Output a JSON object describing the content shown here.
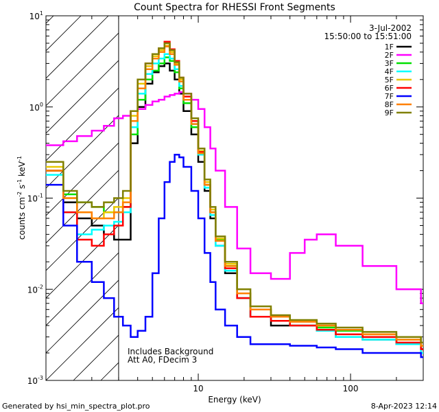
{
  "chart_data": {
    "type": "line",
    "title": "Count Spectra for RHESSI Front Segments",
    "xlabel": "Energy (keV)",
    "ylabel_parts": [
      "counts cm",
      "-2",
      " s",
      "-1",
      " keV",
      "-1"
    ],
    "xscale": "log",
    "yscale": "log",
    "xlim": [
      1,
      300
    ],
    "ylim": [
      0.001,
      10
    ],
    "x_ticks": [
      {
        "value": 10,
        "label": "10"
      },
      {
        "value": 100,
        "label": "100"
      }
    ],
    "y_ticks": [
      {
        "value": 0.001,
        "base": "10",
        "exp": "-3"
      },
      {
        "value": 0.01,
        "base": "10",
        "exp": "-2"
      },
      {
        "value": 0.1,
        "base": "10",
        "exp": "-1"
      },
      {
        "value": 1,
        "base": "10",
        "exp": "0"
      },
      {
        "value": 10,
        "base": "10",
        "exp": "1"
      }
    ],
    "date": "3-Jul-2002",
    "time_range": "15:50:00 to 15:51:00",
    "attenuator_cutoff_kev": 3,
    "annotations": [
      "Includes Background",
      "Att A0, FDecim 3"
    ],
    "footer_left": "Generated by hsi_min_spectra_plot.pro",
    "footer_right": "8-Apr-2023 12:14",
    "series": [
      {
        "name": "1F",
        "color": "#000000",
        "x": [
          1.0,
          1.3,
          1.6,
          2.0,
          2.4,
          2.8,
          3.2,
          3.6,
          4.0,
          4.5,
          5.0,
          5.5,
          6.0,
          6.5,
          7.0,
          7.5,
          8.0,
          9.0,
          10.0,
          11.0,
          12.0,
          13.0,
          15.0,
          18.0,
          22.0,
          30.0,
          40.0,
          60.0,
          80.0,
          120.0,
          200.0,
          290.0
        ],
        "y": [
          0.2,
          0.09,
          0.06,
          0.05,
          0.04,
          0.035,
          0.035,
          0.4,
          1.0,
          1.8,
          2.4,
          2.8,
          3.0,
          2.5,
          2.0,
          1.4,
          0.9,
          0.5,
          0.25,
          0.12,
          0.06,
          0.03,
          0.015,
          0.008,
          0.005,
          0.004,
          0.004,
          0.0035,
          0.003,
          0.0028,
          0.0025,
          0.0022
        ]
      },
      {
        "name": "2F",
        "color": "#ff00ff",
        "x": [
          1.0,
          1.3,
          1.6,
          2.0,
          2.4,
          2.8,
          3.2,
          3.6,
          4.0,
          4.5,
          5.0,
          5.5,
          6.0,
          6.5,
          7.0,
          7.5,
          8.0,
          9.0,
          10.0,
          11.0,
          12.0,
          13.0,
          15.0,
          18.0,
          22.0,
          30.0,
          40.0,
          50.0,
          60.0,
          80.0,
          120.0,
          200.0,
          290.0
        ],
        "y": [
          0.38,
          0.42,
          0.48,
          0.55,
          0.62,
          0.75,
          0.8,
          0.9,
          0.95,
          1.05,
          1.15,
          1.2,
          1.3,
          1.35,
          1.4,
          1.45,
          1.4,
          1.2,
          0.95,
          0.6,
          0.35,
          0.2,
          0.08,
          0.028,
          0.015,
          0.013,
          0.025,
          0.035,
          0.04,
          0.03,
          0.018,
          0.01,
          0.007
        ]
      },
      {
        "name": "3F",
        "color": "#00e000",
        "x": [
          1.0,
          1.3,
          1.6,
          2.0,
          2.4,
          2.8,
          3.2,
          3.6,
          4.0,
          4.5,
          5.0,
          5.5,
          6.0,
          6.5,
          7.0,
          7.5,
          8.0,
          9.0,
          10.0,
          11.0,
          12.0,
          13.0,
          15.0,
          18.0,
          22.0,
          30.0,
          40.0,
          60.0,
          80.0,
          120.0,
          200.0,
          290.0
        ],
        "y": [
          0.2,
          0.11,
          0.09,
          0.08,
          0.07,
          0.07,
          0.08,
          0.5,
          1.2,
          2.0,
          2.5,
          3.0,
          3.5,
          3.2,
          2.4,
          1.6,
          1.1,
          0.6,
          0.3,
          0.14,
          0.07,
          0.035,
          0.018,
          0.009,
          0.006,
          0.005,
          0.004,
          0.0038,
          0.0035,
          0.003,
          0.0028,
          0.0024
        ]
      },
      {
        "name": "4F",
        "color": "#00ffff",
        "x": [
          1.0,
          1.3,
          1.6,
          2.0,
          2.4,
          2.8,
          3.2,
          3.6,
          4.0,
          4.5,
          5.0,
          5.5,
          6.0,
          6.5,
          7.0,
          7.5,
          8.0,
          9.0,
          10.0,
          11.0,
          12.0,
          13.0,
          15.0,
          18.0,
          22.0,
          30.0,
          40.0,
          60.0,
          80.0,
          120.0,
          200.0,
          290.0
        ],
        "y": [
          0.18,
          0.07,
          0.04,
          0.045,
          0.05,
          0.055,
          0.07,
          0.6,
          1.4,
          2.3,
          3.0,
          3.4,
          3.8,
          3.4,
          2.6,
          1.7,
          1.2,
          0.65,
          0.3,
          0.13,
          0.065,
          0.03,
          0.016,
          0.008,
          0.005,
          0.0045,
          0.004,
          0.0035,
          0.003,
          0.0028,
          0.0025,
          0.002
        ]
      },
      {
        "name": "5F",
        "color": "#e8c800",
        "x": [
          1.0,
          1.3,
          1.6,
          2.0,
          2.4,
          2.8,
          3.2,
          3.6,
          4.0,
          4.5,
          5.0,
          5.5,
          6.0,
          6.5,
          7.0,
          7.5,
          8.0,
          9.0,
          10.0,
          11.0,
          12.0,
          13.0,
          15.0,
          18.0,
          22.0,
          30.0,
          40.0,
          60.0,
          80.0,
          120.0,
          200.0,
          290.0
        ],
        "y": [
          0.22,
          0.1,
          0.07,
          0.06,
          0.07,
          0.08,
          0.1,
          0.8,
          1.8,
          2.8,
          3.6,
          4.2,
          4.7,
          4.0,
          3.0,
          2.0,
          1.3,
          0.7,
          0.33,
          0.15,
          0.075,
          0.036,
          0.019,
          0.009,
          0.006,
          0.005,
          0.0045,
          0.004,
          0.0036,
          0.0032,
          0.0028,
          0.0024
        ]
      },
      {
        "name": "6F",
        "color": "#ff0000",
        "x": [
          1.0,
          1.3,
          1.6,
          2.0,
          2.4,
          2.8,
          3.2,
          3.6,
          4.0,
          4.5,
          5.0,
          5.5,
          6.0,
          6.5,
          7.0,
          7.5,
          8.0,
          9.0,
          10.0,
          11.0,
          12.0,
          13.0,
          15.0,
          18.0,
          22.0,
          30.0,
          40.0,
          60.0,
          80.0,
          120.0,
          200.0,
          290.0
        ],
        "y": [
          0.2,
          0.07,
          0.035,
          0.03,
          0.04,
          0.05,
          0.08,
          0.9,
          2.0,
          3.0,
          3.8,
          4.4,
          5.2,
          4.3,
          3.2,
          2.1,
          1.3,
          0.7,
          0.32,
          0.14,
          0.07,
          0.034,
          0.017,
          0.008,
          0.005,
          0.0045,
          0.004,
          0.0036,
          0.0032,
          0.003,
          0.0026,
          0.0022
        ]
      },
      {
        "name": "7F",
        "color": "#0000ff",
        "x": [
          1.0,
          1.3,
          1.6,
          2.0,
          2.4,
          2.8,
          3.2,
          3.6,
          4.0,
          4.5,
          5.0,
          5.5,
          6.0,
          6.5,
          7.0,
          7.5,
          8.0,
          9.0,
          10.0,
          11.0,
          12.0,
          13.0,
          15.0,
          18.0,
          22.0,
          30.0,
          40.0,
          60.0,
          80.0,
          120.0,
          200.0,
          290.0
        ],
        "y": [
          0.14,
          0.05,
          0.02,
          0.012,
          0.008,
          0.005,
          0.004,
          0.003,
          0.0035,
          0.005,
          0.015,
          0.06,
          0.15,
          0.25,
          0.3,
          0.28,
          0.22,
          0.12,
          0.06,
          0.025,
          0.012,
          0.006,
          0.004,
          0.003,
          0.0025,
          0.0025,
          0.0024,
          0.0023,
          0.0022,
          0.002,
          0.002,
          0.0018
        ]
      },
      {
        "name": "8F",
        "color": "#ff8000",
        "x": [
          1.0,
          1.3,
          1.6,
          2.0,
          2.4,
          2.8,
          3.2,
          3.6,
          4.0,
          4.5,
          5.0,
          5.5,
          6.0,
          6.5,
          7.0,
          7.5,
          8.0,
          9.0,
          10.0,
          11.0,
          12.0,
          13.0,
          15.0,
          18.0,
          22.0,
          30.0,
          40.0,
          60.0,
          80.0,
          120.0,
          200.0,
          290.0
        ],
        "y": [
          0.2,
          0.1,
          0.07,
          0.06,
          0.06,
          0.07,
          0.09,
          0.7,
          1.6,
          2.6,
          3.4,
          4.0,
          4.6,
          3.8,
          2.9,
          1.9,
          1.2,
          0.65,
          0.31,
          0.14,
          0.07,
          0.034,
          0.018,
          0.009,
          0.006,
          0.005,
          0.0044,
          0.004,
          0.0036,
          0.0032,
          0.0028,
          0.0024
        ]
      },
      {
        "name": "9F",
        "color": "#808000",
        "x": [
          1.0,
          1.3,
          1.6,
          2.0,
          2.4,
          2.8,
          3.2,
          3.6,
          4.0,
          4.5,
          5.0,
          5.5,
          6.0,
          6.5,
          7.0,
          7.5,
          8.0,
          9.0,
          10.0,
          11.0,
          12.0,
          13.0,
          15.0,
          18.0,
          22.0,
          30.0,
          40.0,
          60.0,
          80.0,
          120.0,
          200.0,
          290.0
        ],
        "y": [
          0.25,
          0.12,
          0.09,
          0.08,
          0.09,
          0.1,
          0.12,
          0.9,
          2.0,
          3.0,
          3.8,
          4.4,
          5.0,
          4.2,
          3.1,
          2.1,
          1.4,
          0.75,
          0.35,
          0.16,
          0.08,
          0.038,
          0.02,
          0.01,
          0.0065,
          0.0052,
          0.0046,
          0.0042,
          0.0038,
          0.0034,
          0.003,
          0.0026
        ]
      }
    ]
  }
}
